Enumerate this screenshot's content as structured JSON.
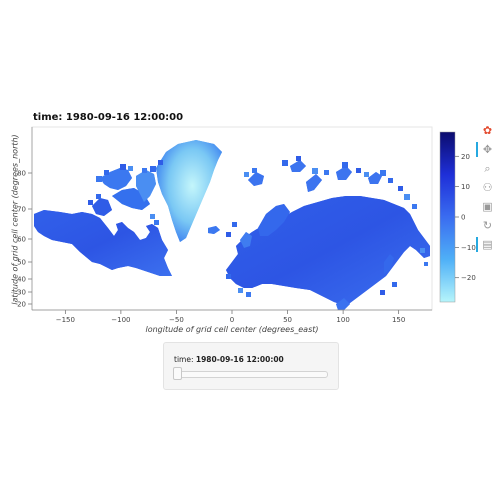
{
  "title": "time: 1980-09-16 12:00:00",
  "axes": {
    "xlabel": "longitude of grid cell center (degrees_east)",
    "ylabel": "latitude of grid cell center (degrees_north)",
    "xticks": [
      "−150",
      "−100",
      "−50",
      "0",
      "50",
      "100",
      "150"
    ],
    "xtick_values": [
      -150,
      -100,
      -50,
      0,
      50,
      100,
      150
    ],
    "yticks": [
      "20",
      "30",
      "40",
      "50",
      "60",
      "70",
      "80"
    ],
    "ytick_values": [
      20,
      30,
      40,
      50,
      60,
      70,
      80
    ]
  },
  "colorbar": {
    "ticks": [
      "20",
      "10",
      "0",
      "−10",
      "−20"
    ],
    "tick_values": [
      20,
      10,
      0,
      -10,
      -20
    ],
    "range": [
      -28,
      28
    ],
    "colors": [
      "#0c0c6e",
      "#1e2fd8",
      "#3a6cf0",
      "#4fb0f7",
      "#b6f5fb"
    ]
  },
  "chart_data": {
    "type": "heatmap",
    "title": "time: 1980-09-16 12:00:00",
    "xlabel": "longitude of grid cell center (degrees_east)",
    "ylabel": "latitude of grid cell center (degrees_north)",
    "xlim": [
      -180,
      180
    ],
    "ylim": [
      20,
      90
    ],
    "clim": [
      -28,
      28
    ],
    "colormap": "blue-to-cyan",
    "grid": false
  },
  "toolbar": {
    "tools": [
      {
        "name": "bokeh-logo-icon",
        "glyph": "✿",
        "color": "#e34a2e"
      },
      {
        "name": "pan-icon",
        "glyph": "✥",
        "color": "#999999",
        "active": true
      },
      {
        "name": "box-zoom-icon",
        "glyph": "⌕",
        "color": "#999999"
      },
      {
        "name": "wheel-zoom-icon",
        "glyph": "⚇",
        "color": "#999999"
      },
      {
        "name": "save-icon",
        "glyph": "▣",
        "color": "#999999"
      },
      {
        "name": "reset-icon",
        "glyph": "↻",
        "color": "#999999"
      },
      {
        "name": "hover-icon",
        "glyph": "▤",
        "color": "#999999",
        "active": true
      }
    ]
  },
  "widget": {
    "label": "time:",
    "value": "1980-09-16 12:00:00",
    "slider_fraction": 0
  }
}
